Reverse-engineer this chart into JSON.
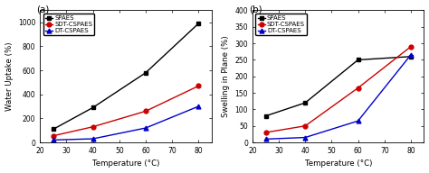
{
  "temp_a": [
    25,
    40,
    60,
    80
  ],
  "temp_b": [
    25,
    40,
    60,
    80
  ],
  "water_uptake": {
    "SPAES": [
      110,
      290,
      580,
      990
    ],
    "SDT-CSPAES": [
      55,
      130,
      260,
      470
    ],
    "DT-CSPAES": [
      20,
      30,
      120,
      300
    ]
  },
  "swelling": {
    "SPAES": [
      80,
      120,
      250,
      260
    ],
    "SDT-CSPAES": [
      30,
      50,
      165,
      290
    ],
    "DT-CSPAES": [
      10,
      15,
      65,
      265
    ]
  },
  "colors": {
    "SPAES": "#000000",
    "SDT-CSPAES": "#cc0000",
    "DT-CSPAES": "#0000cc"
  },
  "markers": {
    "SPAES": "s",
    "SDT-CSPAES": "o",
    "DT-CSPAES": "^"
  },
  "ylabel_a": "Water Uptake (%)",
  "ylabel_b": "Swelling in Plane (%)",
  "xlabel": "Temperature (°C)",
  "label_a": "(a)",
  "label_b": "(b)",
  "ylim_a": [
    0,
    1100
  ],
  "ylim_b": [
    0,
    400
  ],
  "xlim": [
    20,
    85
  ],
  "xticks": [
    20,
    30,
    40,
    50,
    60,
    70,
    80
  ],
  "yticks_a": [
    0,
    200,
    400,
    600,
    800,
    1000
  ],
  "yticks_b": [
    0,
    50,
    100,
    150,
    200,
    250,
    300,
    350,
    400
  ],
  "legend_fontsize": 5.0,
  "tick_fontsize": 5.5,
  "axis_label_fontsize": 6.2,
  "marker_size": 3.5,
  "line_width": 1.0,
  "bg_color": "#ffffff"
}
